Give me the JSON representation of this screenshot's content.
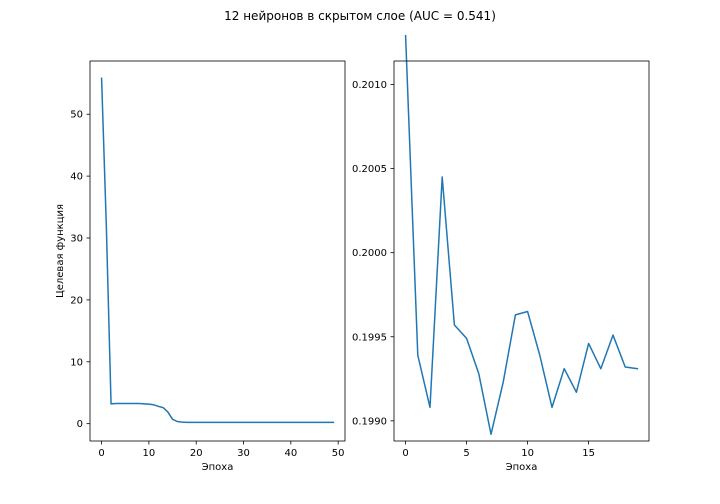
{
  "figure": {
    "suptitle": "12 нейронов в скрытом слое (AUC = 0.541)"
  },
  "colors": {
    "line": "#1f77b4",
    "axes": "#000000",
    "background": "#ffffff"
  },
  "chart_data": [
    {
      "type": "line",
      "title": "",
      "xlabel": "Эпоха",
      "ylabel": "Целевая функция",
      "xlim": [
        -2.45,
        51.45
      ],
      "ylim": [
        -2.8,
        58.6
      ],
      "xticks": [
        0,
        10,
        20,
        30,
        40,
        50
      ],
      "yticks": [
        0,
        10,
        20,
        30,
        40,
        50
      ],
      "xtick_labels": [
        "0",
        "10",
        "20",
        "30",
        "40",
        "50"
      ],
      "ytick_labels": [
        "0",
        "10",
        "20",
        "30",
        "40",
        "50"
      ],
      "grid": false,
      "legend": "none",
      "series": [
        {
          "x": [
            0,
            1,
            2,
            3,
            4,
            5,
            6,
            7,
            8,
            9,
            10,
            11,
            12,
            13,
            14,
            15,
            16,
            17,
            18,
            19,
            20,
            21,
            22,
            23,
            24,
            25,
            26,
            27,
            28,
            29,
            30,
            31,
            32,
            33,
            34,
            35,
            36,
            37,
            38,
            39,
            40,
            41,
            42,
            43,
            44,
            45,
            46,
            47,
            48,
            49
          ],
          "values": [
            55.8,
            32.0,
            3.2,
            3.25,
            3.25,
            3.25,
            3.25,
            3.25,
            3.25,
            3.2,
            3.15,
            3.05,
            2.8,
            2.6,
            1.9,
            0.7,
            0.35,
            0.25,
            0.2,
            0.2,
            0.2,
            0.2,
            0.2,
            0.2,
            0.2,
            0.2,
            0.2,
            0.2,
            0.2,
            0.2,
            0.2,
            0.2,
            0.2,
            0.2,
            0.2,
            0.2,
            0.2,
            0.2,
            0.2,
            0.2,
            0.2,
            0.2,
            0.2,
            0.2,
            0.2,
            0.2,
            0.2,
            0.2,
            0.2,
            0.2
          ]
        }
      ]
    },
    {
      "type": "line",
      "title": "",
      "xlabel": "Эпоха",
      "ylabel": "",
      "xlim": [
        -0.95,
        19.95
      ],
      "ylim": [
        0.19888,
        0.20114
      ],
      "xticks": [
        0,
        5,
        10,
        15
      ],
      "yticks": [
        0.199,
        0.1995,
        0.2,
        0.2005,
        0.201
      ],
      "xtick_labels": [
        "0",
        "5",
        "10",
        "15"
      ],
      "ytick_labels": [
        "0.1990",
        "0.1995",
        "0.2000",
        "0.2005",
        "0.2010"
      ],
      "grid": false,
      "legend": "none",
      "series": [
        {
          "x": [
            0,
            1,
            2,
            3,
            4,
            5,
            6,
            7,
            8,
            9,
            10,
            11,
            12,
            13,
            14,
            15,
            16,
            17,
            18,
            19
          ],
          "values": [
            0.20129,
            0.19939,
            0.19908,
            0.20045,
            0.19957,
            0.19949,
            0.19928,
            0.19892,
            0.19923,
            0.19963,
            0.19965,
            0.19939,
            0.19908,
            0.19931,
            0.19917,
            0.19946,
            0.19931,
            0.19951,
            0.19932,
            0.19931
          ]
        }
      ]
    }
  ]
}
